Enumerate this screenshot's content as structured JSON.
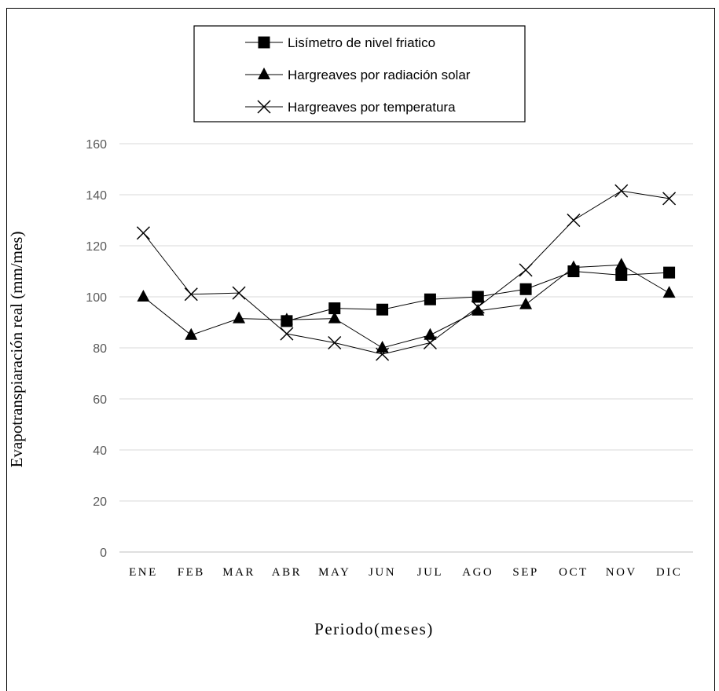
{
  "chart_data": {
    "type": "line",
    "title": "",
    "xlabel": "Periodo(meses)",
    "ylabel": "Evapotranspiaración real (mm/mes)",
    "categories": [
      "ENE",
      "FEB",
      "MAR",
      "ABR",
      "MAY",
      "JUN",
      "JUL",
      "AGO",
      "SEP",
      "OCT",
      "NOV",
      "DIC"
    ],
    "ylim": [
      0,
      160
    ],
    "yticks": [
      0,
      20,
      40,
      60,
      80,
      100,
      120,
      140,
      160
    ],
    "grid": true,
    "legend_position": "top",
    "series": [
      {
        "name": "Lisímetro de nivel friatico",
        "marker": "square",
        "color": "#000000",
        "values": [
          null,
          null,
          null,
          90.5,
          95.5,
          95,
          99,
          100,
          103,
          110,
          108.5,
          109.5
        ]
      },
      {
        "name": "Hargreaves por radiación solar",
        "marker": "triangle",
        "color": "#000000",
        "values": [
          100,
          85,
          91.5,
          91,
          91.5,
          80,
          85,
          94.5,
          97,
          111.5,
          112.5,
          101.5
        ]
      },
      {
        "name": "Hargreaves por temperatura",
        "marker": "x",
        "color": "#000000",
        "values": [
          125,
          101,
          101.5,
          85.5,
          82,
          77.5,
          82,
          96,
          110.5,
          130,
          141.5,
          138.5
        ]
      }
    ]
  }
}
